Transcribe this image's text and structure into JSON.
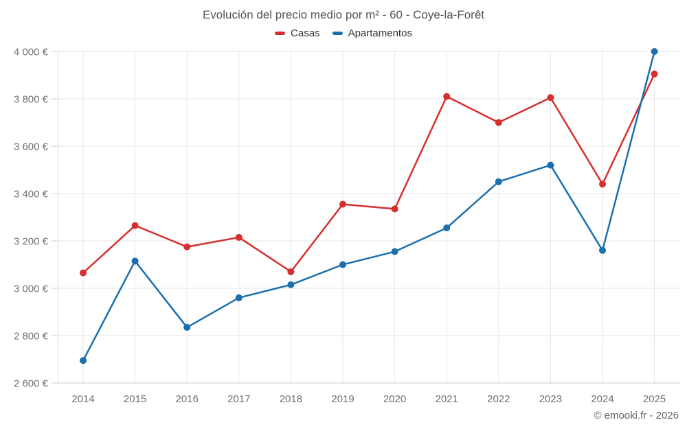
{
  "chart_data": {
    "type": "line",
    "title": "Evolución del precio medio por m² - 60 - Coye-la-Forêt",
    "x": [
      2014,
      2015,
      2016,
      2017,
      2018,
      2019,
      2020,
      2021,
      2022,
      2023,
      2024,
      2025
    ],
    "series": [
      {
        "name": "Casas",
        "color": "#d62f2e",
        "values": [
          3065,
          3265,
          3175,
          3215,
          3070,
          3355,
          3335,
          3810,
          3700,
          3805,
          3440,
          3905
        ]
      },
      {
        "name": "Apartamentos",
        "color": "#1b6fad",
        "values": [
          2695,
          3115,
          2835,
          2960,
          3015,
          3100,
          3155,
          3255,
          3450,
          3520,
          3160,
          4000
        ]
      }
    ],
    "ylim": [
      2600,
      4000
    ],
    "ytick_step": 200,
    "y_suffix": " €",
    "grid": true,
    "legend_position": "top",
    "copyright": "© emooki.fr - 2026",
    "colors": {
      "grid": "#e6e6e6",
      "axis": "#cccccc",
      "yaxis_line": "#d9d9d9",
      "tick_label": "#707070"
    }
  }
}
